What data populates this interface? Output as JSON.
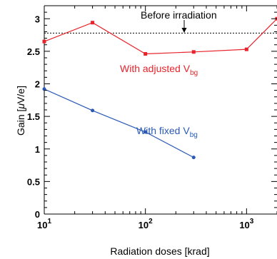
{
  "chart_data": {
    "type": "line",
    "xscale": "log",
    "xlim": [
      10,
      2000
    ],
    "ylim": [
      0,
      3.2
    ],
    "xlabel": "Radiation doses [krad]",
    "ylabel": "Gain [",
    "ylabel_mu": "μ",
    "ylabel_unit": "V/e]",
    "x_ticks": [
      {
        "value": 10,
        "base": "10",
        "exp": "1"
      },
      {
        "value": 100,
        "base": "10",
        "exp": "2"
      },
      {
        "value": 1000,
        "base": "10",
        "exp": "3"
      }
    ],
    "y_ticks": [
      {
        "value": 0,
        "label": "0"
      },
      {
        "value": 0.5,
        "label": "0.5"
      },
      {
        "value": 1,
        "label": "1"
      },
      {
        "value": 1.5,
        "label": "1.5"
      },
      {
        "value": 2,
        "label": "2"
      },
      {
        "value": 2.5,
        "label": "2.5"
      },
      {
        "value": 3,
        "label": "3"
      }
    ],
    "reference": {
      "label": "Before irradiation",
      "y": 2.78
    },
    "series": [
      {
        "label_main": "With adjusted V",
        "label_sub": "bg",
        "color": "#e8232b",
        "marker": "square",
        "x": [
          10,
          30,
          100,
          300,
          1000,
          2000
        ],
        "y": [
          2.65,
          2.94,
          2.46,
          2.49,
          2.53,
          3.0
        ]
      },
      {
        "label_main": "With fixed V",
        "label_sub": "bg",
        "color": "#2a5ab5",
        "marker": "circle",
        "x": [
          10,
          30,
          100,
          300
        ],
        "y": [
          1.92,
          1.59,
          1.26,
          0.87
        ]
      }
    ]
  }
}
